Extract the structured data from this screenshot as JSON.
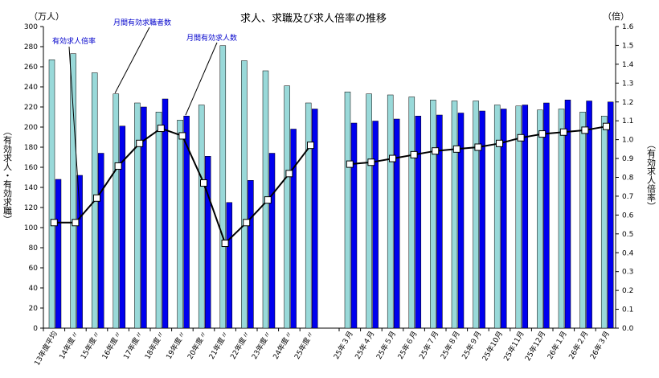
{
  "chart_data": {
    "type": "bar",
    "title": "求人、求職及び求人倍率の推移",
    "left_unit": "（万人）",
    "right_unit": "（倍）",
    "left_axis_label": "（有効求人・有効求職）",
    "right_axis_label": "（有効求人倍率）",
    "left_ylim": [
      0,
      300
    ],
    "right_ylim": [
      0,
      1.6
    ],
    "left_ticks": [
      0,
      20,
      40,
      60,
      80,
      100,
      120,
      140,
      160,
      180,
      200,
      220,
      240,
      260,
      280,
      300
    ],
    "right_ticks": [
      "0.0",
      "0.1",
      "0.2",
      "0.3",
      "0.4",
      "0.5",
      "0.6",
      "0.7",
      "0.8",
      "0.9",
      "1.0",
      "1.1",
      "1.2",
      "1.3",
      "1.4",
      "1.5",
      "1.6"
    ],
    "groups": [
      {
        "categories": [
          "13年度平均",
          "14年度〃",
          "15年度〃",
          "16年度〃",
          "17年度〃",
          "18年度〃",
          "19年度〃",
          "20年度〃",
          "21年度〃",
          "22年度〃",
          "23年度〃",
          "24年度〃",
          "25年度〃"
        ],
        "seekers": [
          267,
          273,
          254,
          233,
          224,
          215,
          207,
          222,
          281,
          266,
          256,
          241,
          224
        ],
        "openings": [
          148,
          152,
          174,
          201,
          220,
          228,
          211,
          171,
          125,
          147,
          174,
          198,
          218
        ],
        "ratio": [
          0.56,
          0.56,
          0.69,
          0.86,
          0.98,
          1.06,
          1.02,
          0.77,
          0.45,
          0.56,
          0.68,
          0.82,
          0.97
        ]
      },
      {
        "categories": [
          "25年３月",
          "25年４月",
          "25年５月",
          "25年６月",
          "25年７月",
          "25年８月",
          "25年９月",
          "25年10月",
          "25年11月",
          "25年12月",
          "26年１月",
          "26年２月",
          "26年３月"
        ],
        "seekers": [
          235,
          233,
          232,
          230,
          227,
          226,
          226,
          222,
          221,
          217,
          218,
          215,
          211
        ],
        "openings": [
          204,
          206,
          208,
          211,
          212,
          214,
          216,
          218,
          222,
          224,
          227,
          226,
          225
        ],
        "ratio": [
          0.87,
          0.88,
          0.9,
          0.92,
          0.94,
          0.95,
          0.96,
          0.98,
          1.01,
          1.03,
          1.04,
          1.05,
          1.07
        ]
      }
    ],
    "series": [
      {
        "name": "月間有効求職者数",
        "type": "bar",
        "color": "#99d9d9",
        "axis": "left"
      },
      {
        "name": "月間有効求人数",
        "type": "bar",
        "color": "#0000ee",
        "axis": "left"
      },
      {
        "name": "有効求人倍率",
        "type": "line",
        "color": "#000000",
        "marker": "white-square",
        "axis": "right"
      }
    ],
    "annotations": [
      {
        "text": "有効求人倍率",
        "series": "有効求人倍率"
      },
      {
        "text": "月間有効求職者数",
        "series": "月間有効求職者数"
      },
      {
        "text": "月間有効求人数",
        "series": "月間有効求人数"
      }
    ],
    "grid": false,
    "legend": "none"
  }
}
